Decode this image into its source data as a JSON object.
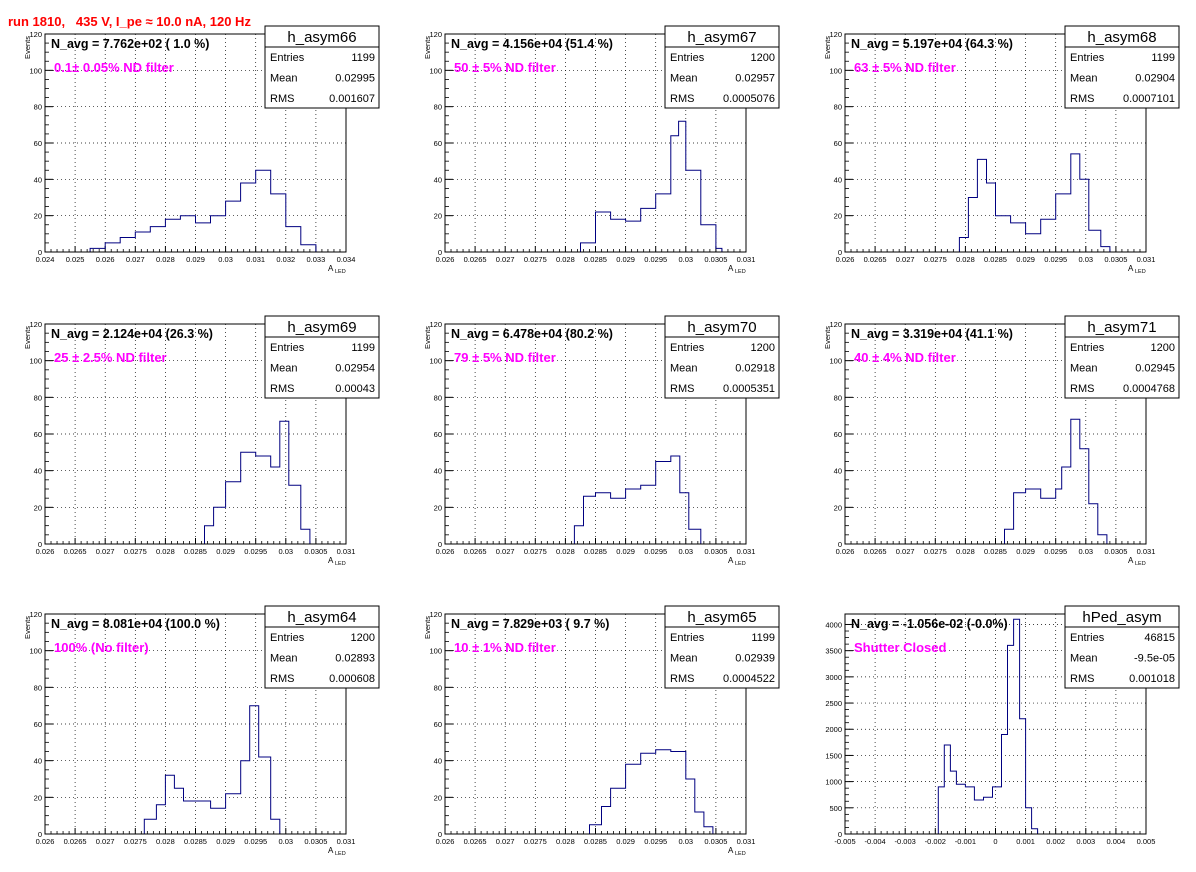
{
  "run_title": "run 1810,   435 V, I_pe ≈ 10.0 nA, 120 Hz",
  "colors": {
    "title": "#ff0000",
    "annotation": "#ff00ff",
    "histogram": "#000080",
    "frame": "#000000",
    "grid": "#000000"
  },
  "stats_labels": {
    "entries": "Entries",
    "mean": "Mean",
    "rms": "RMS"
  },
  "chart_data": [
    {
      "type": "histogram",
      "name": "h_asym66",
      "navg": "N_avg = 7.762e+02 ( 1.0 %)",
      "annotation": "0.1± 0.05% ND filter",
      "stats": {
        "entries": "1199",
        "mean": "0.02995",
        "rms": "0.001607"
      },
      "xlim": [
        0.024,
        0.034
      ],
      "ylim": [
        0,
        120
      ],
      "xticks": [
        0.024,
        0.025,
        0.026,
        0.027,
        0.028,
        0.029,
        0.03,
        0.031,
        0.032,
        0.033,
        0.034
      ],
      "xtick_labels": [
        "0.024",
        "0.025",
        "0.026",
        "0.027",
        "0.028",
        "0.029",
        "0.03",
        "0.031",
        "0.032",
        "0.033",
        "0.034"
      ],
      "yticks": [
        0,
        20,
        40,
        60,
        80,
        100,
        120
      ],
      "ytick_labels": [
        "0",
        "20",
        "40",
        "60",
        "80",
        "100",
        "120"
      ],
      "xlabel": "A",
      "xlabel_sub": "LED",
      "ylabel": "Events",
      "bins": [
        [
          0.0255,
          2
        ],
        [
          0.026,
          5
        ],
        [
          0.0265,
          8
        ],
        [
          0.027,
          11
        ],
        [
          0.0275,
          14
        ],
        [
          0.028,
          18
        ],
        [
          0.0285,
          20
        ],
        [
          0.029,
          16
        ],
        [
          0.0295,
          20
        ],
        [
          0.03,
          28
        ],
        [
          0.0305,
          38
        ],
        [
          0.031,
          45
        ],
        [
          0.0315,
          32
        ],
        [
          0.032,
          14
        ],
        [
          0.0325,
          4
        ],
        [
          0.033,
          0
        ]
      ]
    },
    {
      "type": "histogram",
      "name": "h_asym67",
      "navg": "N_avg = 4.156e+04 (51.4 %)",
      "annotation": " 50 ± 5% ND filter",
      "stats": {
        "entries": "1200",
        "mean": "0.02957",
        "rms": "0.0005076"
      },
      "xlim": [
        0.026,
        0.031
      ],
      "ylim": [
        0,
        120
      ],
      "xticks": [
        0.026,
        0.0265,
        0.027,
        0.0275,
        0.028,
        0.0285,
        0.029,
        0.0295,
        0.03,
        0.0305,
        0.031
      ],
      "xtick_labels": [
        "0.026",
        "0.0265",
        "0.027",
        "0.0275",
        "0.028",
        "0.0285",
        "0.029",
        "0.0295",
        "0.03",
        "0.0305",
        "0.031"
      ],
      "yticks": [
        0,
        20,
        40,
        60,
        80,
        100,
        120
      ],
      "ytick_labels": [
        "0",
        "20",
        "40",
        "60",
        "80",
        "100",
        "120"
      ],
      "xlabel": "A",
      "xlabel_sub": "LED",
      "ylabel": "Events",
      "bins": [
        [
          0.028,
          0
        ],
        [
          0.02825,
          5
        ],
        [
          0.0285,
          22
        ],
        [
          0.02875,
          18
        ],
        [
          0.029,
          17
        ],
        [
          0.02925,
          24
        ],
        [
          0.0295,
          32
        ],
        [
          0.02975,
          64
        ],
        [
          0.02988,
          72
        ],
        [
          0.03,
          45
        ],
        [
          0.03025,
          15
        ],
        [
          0.0305,
          2
        ],
        [
          0.0306,
          0
        ]
      ]
    },
    {
      "type": "histogram",
      "name": "h_asym68",
      "navg": "N_avg = 5.197e+04 (64.3 %)",
      "annotation": " 63 ± 5% ND filter",
      "stats": {
        "entries": "1199",
        "mean": "0.02904",
        "rms": "0.0007101"
      },
      "xlim": [
        0.026,
        0.031
      ],
      "ylim": [
        0,
        120
      ],
      "xticks": [
        0.026,
        0.0265,
        0.027,
        0.0275,
        0.028,
        0.0285,
        0.029,
        0.0295,
        0.03,
        0.0305,
        0.031
      ],
      "xtick_labels": [
        "0.026",
        "0.0265",
        "0.027",
        "0.0275",
        "0.028",
        "0.0285",
        "0.029",
        "0.0295",
        "0.03",
        "0.0305",
        "0.031"
      ],
      "yticks": [
        0,
        20,
        40,
        60,
        80,
        100,
        120
      ],
      "ytick_labels": [
        "0",
        "20",
        "40",
        "60",
        "80",
        "100",
        "120"
      ],
      "xlabel": "A",
      "xlabel_sub": "LED",
      "ylabel": "Events",
      "bins": [
        [
          0.02775,
          0
        ],
        [
          0.0279,
          8
        ],
        [
          0.02805,
          30
        ],
        [
          0.0282,
          51
        ],
        [
          0.02835,
          38
        ],
        [
          0.0285,
          20
        ],
        [
          0.02875,
          16
        ],
        [
          0.029,
          10
        ],
        [
          0.02925,
          18
        ],
        [
          0.0295,
          32
        ],
        [
          0.02975,
          54
        ],
        [
          0.0299,
          40
        ],
        [
          0.03005,
          12
        ],
        [
          0.03025,
          3
        ],
        [
          0.0304,
          0
        ]
      ]
    },
    {
      "type": "histogram",
      "name": "h_asym69",
      "navg": "N_avg = 2.124e+04 (26.3 %)",
      "annotation": " 25 ± 2.5% ND filter",
      "stats": {
        "entries": "1199",
        "mean": "0.02954",
        "rms": "0.00043"
      },
      "xlim": [
        0.026,
        0.031
      ],
      "ylim": [
        0,
        120
      ],
      "xticks": [
        0.026,
        0.0265,
        0.027,
        0.0275,
        0.028,
        0.0285,
        0.029,
        0.0295,
        0.03,
        0.0305,
        0.031
      ],
      "xtick_labels": [
        "0.026",
        "0.0265",
        "0.027",
        "0.0275",
        "0.028",
        "0.0285",
        "0.029",
        "0.0295",
        "0.03",
        "0.0305",
        "0.031"
      ],
      "yticks": [
        0,
        20,
        40,
        60,
        80,
        100,
        120
      ],
      "ytick_labels": [
        "0",
        "20",
        "40",
        "60",
        "80",
        "100",
        "120"
      ],
      "xlabel": "A",
      "xlabel_sub": "LED",
      "ylabel": "Events",
      "bins": [
        [
          0.0285,
          0
        ],
        [
          0.02865,
          10
        ],
        [
          0.0288,
          20
        ],
        [
          0.029,
          34
        ],
        [
          0.02925,
          50
        ],
        [
          0.0295,
          48
        ],
        [
          0.02975,
          42
        ],
        [
          0.0299,
          67
        ],
        [
          0.03005,
          32
        ],
        [
          0.03025,
          8
        ],
        [
          0.0304,
          0
        ]
      ]
    },
    {
      "type": "histogram",
      "name": "h_asym70",
      "navg": "N_avg = 6.478e+04 (80.2 %)",
      "annotation": " 79 ± 5% ND filter",
      "stats": {
        "entries": "1200",
        "mean": "0.02918",
        "rms": "0.0005351"
      },
      "xlim": [
        0.026,
        0.031
      ],
      "ylim": [
        0,
        120
      ],
      "xticks": [
        0.026,
        0.0265,
        0.027,
        0.0275,
        0.028,
        0.0285,
        0.029,
        0.0295,
        0.03,
        0.0305,
        0.031
      ],
      "xtick_labels": [
        "0.026",
        "0.0265",
        "0.027",
        "0.0275",
        "0.028",
        "0.0285",
        "0.029",
        "0.0295",
        "0.03",
        "0.0305",
        "0.031"
      ],
      "yticks": [
        0,
        20,
        40,
        60,
        80,
        100,
        120
      ],
      "ytick_labels": [
        "0",
        "20",
        "40",
        "60",
        "80",
        "100",
        "120"
      ],
      "xlabel": "A",
      "xlabel_sub": "LED",
      "ylabel": "Events",
      "bins": [
        [
          0.028,
          0
        ],
        [
          0.02815,
          10
        ],
        [
          0.0283,
          26
        ],
        [
          0.0285,
          28
        ],
        [
          0.02875,
          25
        ],
        [
          0.029,
          30
        ],
        [
          0.02925,
          32
        ],
        [
          0.0295,
          45
        ],
        [
          0.02975,
          48
        ],
        [
          0.0299,
          28
        ],
        [
          0.03005,
          8
        ],
        [
          0.03025,
          0
        ]
      ]
    },
    {
      "type": "histogram",
      "name": "h_asym71",
      "navg": "N_avg = 3.319e+04 (41.1 %)",
      "annotation": " 40 ± 4% ND filter",
      "stats": {
        "entries": "1200",
        "mean": "0.02945",
        "rms": "0.0004768"
      },
      "xlim": [
        0.026,
        0.031
      ],
      "ylim": [
        0,
        120
      ],
      "xticks": [
        0.026,
        0.0265,
        0.027,
        0.0275,
        0.028,
        0.0285,
        0.029,
        0.0295,
        0.03,
        0.0305,
        0.031
      ],
      "xtick_labels": [
        "0.026",
        "0.0265",
        "0.027",
        "0.0275",
        "0.028",
        "0.0285",
        "0.029",
        "0.0295",
        "0.03",
        "0.0305",
        "0.031"
      ],
      "yticks": [
        0,
        20,
        40,
        60,
        80,
        100,
        120
      ],
      "ytick_labels": [
        "0",
        "20",
        "40",
        "60",
        "80",
        "100",
        "120"
      ],
      "xlabel": "A",
      "xlabel_sub": "LED",
      "ylabel": "Events",
      "bins": [
        [
          0.0285,
          0
        ],
        [
          0.02865,
          8
        ],
        [
          0.0288,
          28
        ],
        [
          0.029,
          30
        ],
        [
          0.02925,
          25
        ],
        [
          0.0295,
          30
        ],
        [
          0.0296,
          42
        ],
        [
          0.02975,
          68
        ],
        [
          0.0299,
          52
        ],
        [
          0.03005,
          22
        ],
        [
          0.0302,
          5
        ],
        [
          0.03035,
          0
        ]
      ]
    },
    {
      "type": "histogram",
      "name": "h_asym64",
      "navg": "N_avg = 8.081e+04 (100.0 %)",
      "annotation": " 100% (No filter)",
      "stats": {
        "entries": "1200",
        "mean": "0.02893",
        "rms": "0.000608"
      },
      "xlim": [
        0.026,
        0.031
      ],
      "ylim": [
        0,
        120
      ],
      "xticks": [
        0.026,
        0.0265,
        0.027,
        0.0275,
        0.028,
        0.0285,
        0.029,
        0.0295,
        0.03,
        0.0305,
        0.031
      ],
      "xtick_labels": [
        "0.026",
        "0.0265",
        "0.027",
        "0.0275",
        "0.028",
        "0.0285",
        "0.029",
        "0.0295",
        "0.03",
        "0.0305",
        "0.031"
      ],
      "yticks": [
        0,
        20,
        40,
        60,
        80,
        100,
        120
      ],
      "ytick_labels": [
        "0",
        "20",
        "40",
        "60",
        "80",
        "100",
        "120"
      ],
      "xlabel": "A",
      "xlabel_sub": "LED",
      "ylabel": "Events",
      "bins": [
        [
          0.0275,
          0
        ],
        [
          0.02765,
          8
        ],
        [
          0.02785,
          16
        ],
        [
          0.028,
          32
        ],
        [
          0.02815,
          25
        ],
        [
          0.0283,
          18
        ],
        [
          0.0285,
          18
        ],
        [
          0.02875,
          14
        ],
        [
          0.029,
          22
        ],
        [
          0.02925,
          40
        ],
        [
          0.0294,
          70
        ],
        [
          0.02955,
          42
        ],
        [
          0.02975,
          8
        ],
        [
          0.0299,
          0
        ]
      ]
    },
    {
      "type": "histogram",
      "name": "h_asym65",
      "navg": "N_avg = 7.829e+03 ( 9.7 %)",
      "annotation": " 10 ± 1% ND filter",
      "stats": {
        "entries": "1199",
        "mean": "0.02939",
        "rms": "0.0004522"
      },
      "xlim": [
        0.026,
        0.031
      ],
      "ylim": [
        0,
        120
      ],
      "xticks": [
        0.026,
        0.0265,
        0.027,
        0.0275,
        0.028,
        0.0285,
        0.029,
        0.0295,
        0.03,
        0.0305,
        0.031
      ],
      "xtick_labels": [
        "0.026",
        "0.0265",
        "0.027",
        "0.0275",
        "0.028",
        "0.0285",
        "0.029",
        "0.0295",
        "0.03",
        "0.0305",
        "0.031"
      ],
      "yticks": [
        0,
        20,
        40,
        60,
        80,
        100,
        120
      ],
      "ytick_labels": [
        "0",
        "20",
        "40",
        "60",
        "80",
        "100",
        "120"
      ],
      "xlabel": "A",
      "xlabel_sub": "LED",
      "ylabel": "Events",
      "bins": [
        [
          0.02825,
          0
        ],
        [
          0.0284,
          5
        ],
        [
          0.0286,
          15
        ],
        [
          0.02875,
          25
        ],
        [
          0.029,
          38
        ],
        [
          0.02925,
          44
        ],
        [
          0.0295,
          46
        ],
        [
          0.02975,
          45
        ],
        [
          0.03,
          30
        ],
        [
          0.03015,
          12
        ],
        [
          0.0303,
          4
        ],
        [
          0.03045,
          0
        ]
      ]
    },
    {
      "type": "histogram",
      "name": "hPed_asym",
      "navg": "N_avg = -1.056e-02 (-0.0%)",
      "annotation": "Shutter Closed",
      "stats": {
        "entries": "46815",
        "mean": "-9.5e-05",
        "rms": "0.001018"
      },
      "xlim": [
        -0.005,
        0.005
      ],
      "ylim": [
        0,
        4200
      ],
      "xticks": [
        -0.005,
        -0.004,
        -0.003,
        -0.002,
        -0.001,
        0,
        0.001,
        0.002,
        0.003,
        0.004,
        0.005
      ],
      "xtick_labels": [
        "-0.005",
        "-0.004",
        "-0.003",
        "-0.002",
        "-0.001",
        "0",
        "0.001",
        "0.002",
        "0.003",
        "0.004",
        "0.005"
      ],
      "yticks": [
        0,
        500,
        1000,
        1500,
        2000,
        2500,
        3000,
        3500,
        4000
      ],
      "ytick_labels": [
        "0",
        "500",
        "1000",
        "1500",
        "2000",
        "2500",
        "3000",
        "3500",
        "4000"
      ],
      "xlabel": "",
      "xlabel_sub": "",
      "ylabel": "",
      "bins": [
        [
          -0.002,
          0
        ],
        [
          -0.0019,
          900
        ],
        [
          -0.0017,
          1700
        ],
        [
          -0.0015,
          1200
        ],
        [
          -0.0013,
          950
        ],
        [
          -0.001,
          900
        ],
        [
          -0.0007,
          650
        ],
        [
          -0.0004,
          700
        ],
        [
          -0.0001,
          900
        ],
        [
          0.0002,
          1900
        ],
        [
          0.0004,
          3600
        ],
        [
          0.0006,
          4100
        ],
        [
          0.0008,
          2200
        ],
        [
          0.001,
          500
        ],
        [
          0.0012,
          100
        ],
        [
          0.0014,
          0
        ]
      ]
    }
  ]
}
